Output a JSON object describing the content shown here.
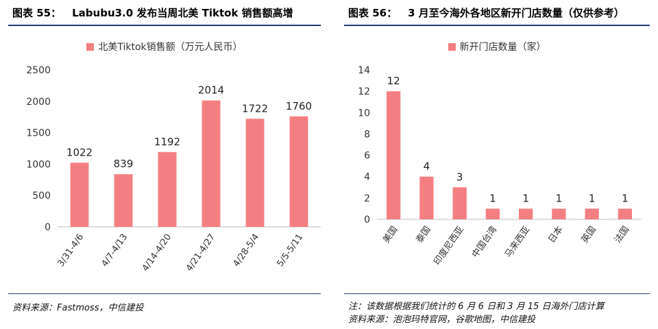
{
  "left": {
    "label": "图表 55：",
    "title": "Labubu3.0 发布当周北美 Tiktok 销售额高增",
    "source": "资料来源：Fastmoss，中信建投"
  },
  "right": {
    "label": "图表 56：",
    "title": "3 月至今海外各地区新开门店数量（仅供参考）",
    "note": "注：该数据根据我们统计的 6 月 6 日和 3 月 15 日海外门店计算",
    "source": "资料来源：泡泡玛特官网，谷歌地图，中信建投"
  },
  "colors": {
    "bar": "#f47f82",
    "rule": "#1f3a6e",
    "axis": "#bfbfbf"
  },
  "chart_data": [
    {
      "type": "bar",
      "title": "Labubu3.0 发布当周北美 Tiktok 销售额高增",
      "categories": [
        "3/31-4/6",
        "4/7-4/13",
        "4/14-4/20",
        "4/21-4/27",
        "4/28-5/4",
        "5/5-5/11"
      ],
      "series": [
        {
          "name": "北美Tiktok销售额（万元人民币）",
          "values": [
            1022,
            839,
            1192,
            2014,
            1722,
            1760
          ]
        }
      ],
      "data_labels": [
        "1022",
        "839",
        "1192",
        "2014",
        "1722",
        "1760"
      ],
      "y_ticks": [
        "0",
        "500",
        "1000",
        "1500",
        "2000",
        "2500"
      ],
      "ylim": [
        0,
        2500
      ],
      "legend": "top-center",
      "grid": false
    },
    {
      "type": "bar",
      "title": "3 月至今海外各地区新开门店数量（仅供参考）",
      "categories": [
        "美国",
        "泰国",
        "印度尼西亚",
        "中国台湾",
        "马来西亚",
        "日本",
        "英国",
        "法国"
      ],
      "series": [
        {
          "name": "新开门店数量（家）",
          "values": [
            12,
            4,
            3,
            1,
            1,
            1,
            1,
            1
          ]
        }
      ],
      "data_labels": [
        "12",
        "4",
        "3",
        "1",
        "1",
        "1",
        "1",
        "1"
      ],
      "y_ticks": [
        "0",
        "2",
        "4",
        "6",
        "8",
        "10",
        "12",
        "14"
      ],
      "ylim": [
        0,
        14
      ],
      "legend": "top-center",
      "grid": false
    }
  ]
}
